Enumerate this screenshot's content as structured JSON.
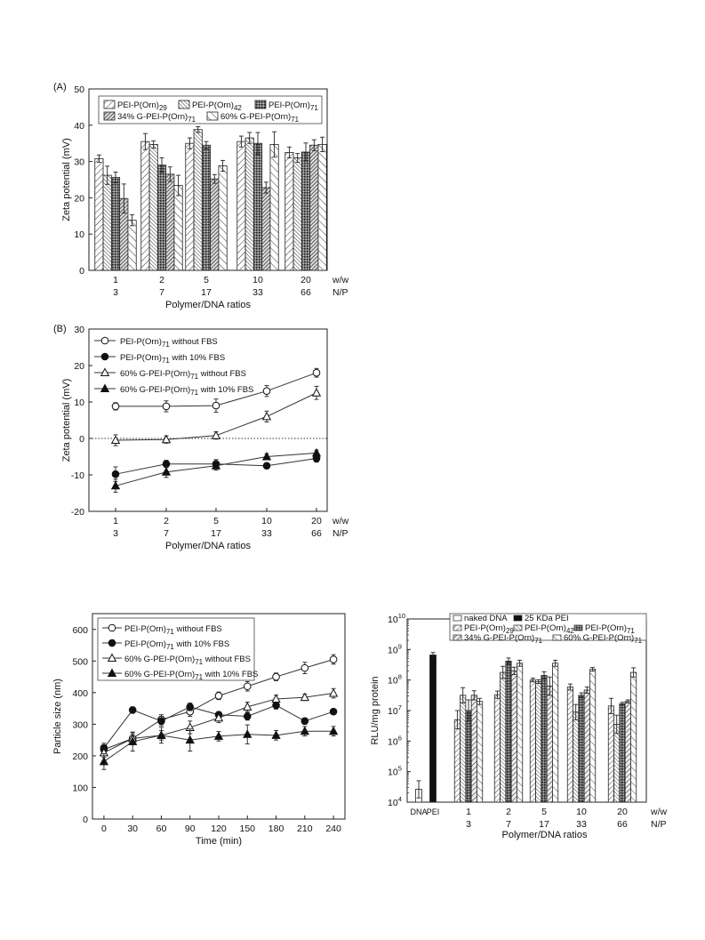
{
  "panels": {
    "a_label": "(A)",
    "b_label": "(B)"
  },
  "chart_data": [
    {
      "id": "A",
      "type": "bar",
      "ylabel": "Zeta potential (mV)",
      "xlabel": "Polymer/DNA ratios",
      "xaxis_unit_row1": "w/w",
      "xaxis_unit_row2": "N/P",
      "ylim": [
        0,
        50
      ],
      "yticks": [
        0,
        10,
        20,
        30,
        40,
        50
      ],
      "categories": [
        "1",
        "2",
        "5",
        "10",
        "20"
      ],
      "categories_np": [
        "3",
        "7",
        "17",
        "33",
        "66"
      ],
      "series": [
        {
          "name": "PEI-P(Orn)",
          "sub": "29",
          "pattern": "p-a29",
          "values": [
            30.8,
            35.5,
            35.0,
            35.5,
            32.5
          ],
          "errors": [
            1.0,
            2.2,
            1.5,
            1.5,
            1.5
          ]
        },
        {
          "name": "PEI-P(Orn)",
          "sub": "42",
          "pattern": "p-a42",
          "values": [
            26.2,
            34.7,
            38.8,
            36.5,
            31.0
          ],
          "errors": [
            2.5,
            1.0,
            0.8,
            1.5,
            1.2
          ]
        },
        {
          "name": "PEI-P(Orn)",
          "sub": "71",
          "pattern": "p-a71",
          "values": [
            25.6,
            29.0,
            34.5,
            35.0,
            32.6
          ],
          "errors": [
            1.5,
            2.0,
            1.0,
            3.0,
            2.5
          ]
        },
        {
          "name": "34% G-PEI-P(Orn)",
          "sub": "71",
          "pattern": "p-a34",
          "values": [
            19.8,
            26.5,
            25.2,
            22.8,
            34.5
          ],
          "errors": [
            4.0,
            2.0,
            1.2,
            1.5,
            1.5
          ]
        },
        {
          "name": "60% G-PEI-P(Orn)",
          "sub": "71",
          "pattern": "p-a60",
          "values": [
            13.8,
            23.4,
            28.8,
            34.7,
            34.7
          ],
          "errors": [
            1.5,
            2.8,
            1.5,
            3.5,
            2.0
          ]
        }
      ]
    },
    {
      "id": "B",
      "type": "line",
      "ylabel": "Zeta potential (mV)",
      "xlabel": "Polymer/DNA ratios",
      "xaxis_unit_row1": "w/w",
      "xaxis_unit_row2": "N/P",
      "ylim": [
        -20,
        30
      ],
      "yticks": [
        -20,
        -10,
        0,
        10,
        20,
        30
      ],
      "reference_line": 0,
      "categories": [
        "1",
        "2",
        "5",
        "10",
        "20"
      ],
      "categories_np": [
        "3",
        "7",
        "17",
        "33",
        "66"
      ],
      "series": [
        {
          "name": "PEI-P(Orn)",
          "sub": "71",
          "suffix": " without FBS",
          "marker": "circle-open",
          "values": [
            8.8,
            8.8,
            9.0,
            13.0,
            18.0
          ],
          "errors": [
            1.0,
            1.5,
            1.8,
            1.5,
            1.2
          ]
        },
        {
          "name": "PEI-P(Orn)",
          "sub": "71",
          "suffix": " with 10% FBS",
          "marker": "circle-filled",
          "values": [
            -9.8,
            -7.0,
            -7.0,
            -7.5,
            -5.5
          ],
          "errors": [
            2.0,
            1.0,
            1.2,
            0.8,
            1.0
          ]
        },
        {
          "name": "60% G-PEI-P(Orn)",
          "sub": "71",
          "suffix": "  without FBS",
          "marker": "triangle-open",
          "values": [
            -0.5,
            -0.3,
            0.8,
            6.0,
            12.5
          ],
          "errors": [
            1.5,
            1.0,
            1.0,
            1.5,
            1.8
          ]
        },
        {
          "name": "60% G-PEI-P(Orn)",
          "sub": "71",
          "suffix": "  with 10% FBS",
          "marker": "triangle-filled",
          "values": [
            -13.0,
            -9.2,
            -7.5,
            -5.0,
            -4.0
          ],
          "errors": [
            1.8,
            1.5,
            1.2,
            0.8,
            0.8
          ]
        }
      ]
    },
    {
      "id": "C",
      "type": "line",
      "ylabel": "Particle size (nm)",
      "xlabel": "Time (min)",
      "ylim": [
        0,
        650
      ],
      "yticks": [
        0,
        100,
        200,
        300,
        400,
        500,
        600
      ],
      "x": [
        0,
        30,
        60,
        90,
        120,
        150,
        180,
        210,
        240
      ],
      "xlim": [
        -12,
        252
      ],
      "series": [
        {
          "name": "PEI-P(Orn)",
          "sub": "71",
          "suffix": " without FBS",
          "marker": "circle-open",
          "values": [
            220,
            255,
            315,
            340,
            390,
            420,
            450,
            478,
            505
          ],
          "errors": [
            15,
            15,
            15,
            15,
            12,
            15,
            12,
            18,
            15
          ]
        },
        {
          "name": "PEI-P(Orn)",
          "sub": "71",
          "suffix": " with 10% FBS",
          "marker": "circle-filled",
          "values": [
            225,
            345,
            310,
            355,
            330,
            325,
            360,
            310,
            340
          ],
          "errors": [
            15,
            10,
            15,
            12,
            10,
            12,
            12,
            10,
            8
          ]
        },
        {
          "name": "60% G-PEI-P(Orn)",
          "sub": "71",
          "suffix": " without FBS",
          "marker": "triangle-open",
          "values": [
            210,
            255,
            265,
            290,
            320,
            355,
            380,
            385,
            398
          ],
          "errors": [
            15,
            20,
            15,
            20,
            15,
            15,
            12,
            10,
            15
          ]
        },
        {
          "name": "60% G-PEI-P(Orn)",
          "sub": "71",
          "suffix": " with 10% FBS",
          "marker": "triangle-filled",
          "values": [
            182,
            245,
            265,
            250,
            262,
            268,
            265,
            278,
            278
          ],
          "errors": [
            25,
            30,
            25,
            35,
            15,
            30,
            15,
            15,
            15
          ]
        }
      ]
    },
    {
      "id": "D",
      "type": "bar",
      "yscale": "log",
      "ylabel": "RLU/mg protein",
      "xlabel": "Polymer/DNA ratios",
      "xaxis_unit_row1": "w/w",
      "xaxis_unit_row2": "N/P",
      "ylim_exp": [
        4,
        10
      ],
      "ytick_base": "10",
      "ytick_exps": [
        "4",
        "5",
        "6",
        "7",
        "8",
        "9",
        "10"
      ],
      "controls": [
        {
          "label": "DNA",
          "pattern": "p-white",
          "log_value": 4.42,
          "error": 0.28
        },
        {
          "label": "PEI",
          "pattern": "p-black",
          "log_value": 8.82,
          "error": 0.08
        }
      ],
      "categories": [
        "1",
        "2",
        "5",
        "10",
        "20"
      ],
      "categories_np": [
        "3",
        "7",
        "17",
        "33",
        "66"
      ],
      "legend_controls": [
        {
          "name": "naked DNA",
          "pattern": "p-white"
        },
        {
          "name": "25 KDa PEI",
          "pattern": "p-black"
        }
      ],
      "series": [
        {
          "name": "PEI-P(Orn)",
          "sub": "29",
          "pattern": "p-d29",
          "log_values": [
            6.7,
            7.52,
            8.0,
            7.77,
            7.15
          ],
          "errors": [
            0.3,
            0.12,
            0.06,
            0.1,
            0.25
          ]
        },
        {
          "name": "PEI-P(Orn)",
          "sub": "42",
          "pattern": "p-d42",
          "log_values": [
            7.5,
            8.25,
            7.95,
            6.95,
            6.55
          ],
          "errors": [
            0.25,
            0.2,
            0.06,
            0.25,
            0.3
          ]
        },
        {
          "name": "PEI-P(Orn)",
          "sub": "71",
          "pattern": "p-d71",
          "log_values": [
            7.0,
            8.62,
            8.15,
            7.5,
            7.22
          ],
          "errors": [
            0.35,
            0.1,
            0.12,
            0.08,
            0.05
          ]
        },
        {
          "name": "34% G-PEI-P(Orn)",
          "sub": "71",
          "pattern": "p-d34",
          "log_values": [
            7.5,
            8.3,
            7.8,
            7.67,
            7.3
          ],
          "errors": [
            0.15,
            0.12,
            0.3,
            0.1,
            0.05
          ]
        },
        {
          "name": "60% G-PEI-P(Orn)",
          "sub": "71",
          "pattern": "p-d60",
          "log_values": [
            7.3,
            8.55,
            8.55,
            8.35,
            8.25
          ],
          "errors": [
            0.1,
            0.1,
            0.1,
            0.06,
            0.15
          ]
        }
      ]
    }
  ]
}
